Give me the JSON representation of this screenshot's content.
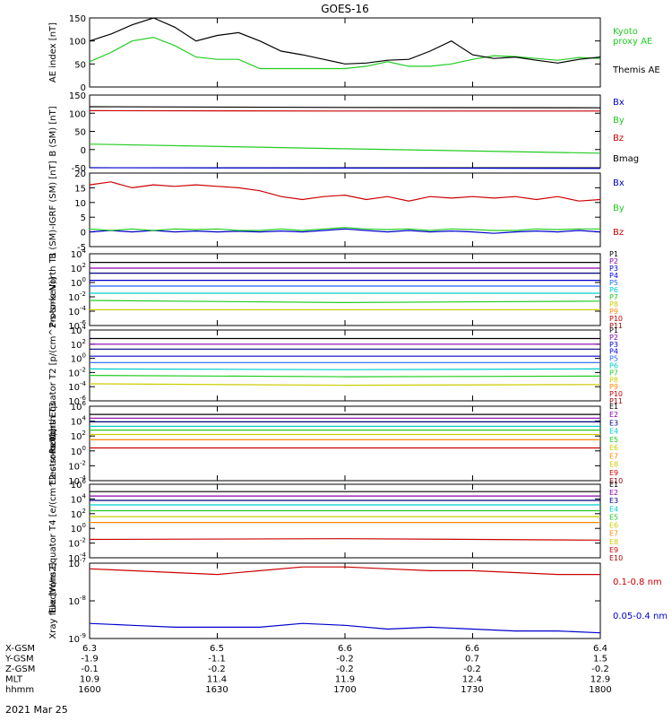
{
  "title": "GOES-16",
  "date": "2021 Mar 25",
  "colors": {
    "black": "#000000",
    "green": "#22cc22",
    "red": "#cc0000",
    "blue": "#0000cc",
    "navy": "#000080",
    "purple": "#8800aa",
    "cyan": "#00cccc",
    "yellow": "#cccc00",
    "orange": "#ff8800",
    "darkred": "#990000",
    "lime": "#66dd00",
    "teal": "#00aa99"
  },
  "chart_data": [
    {
      "type": "line",
      "ylabel": "AE index [nT]",
      "ylim": [
        0,
        150
      ],
      "yticks": [
        "0",
        "50",
        "100",
        "150"
      ],
      "x": [
        0,
        5,
        10,
        15,
        20,
        25,
        30,
        35,
        40,
        45,
        50,
        55,
        60,
        65,
        70,
        75,
        80,
        85,
        90,
        95,
        100,
        105,
        110,
        115,
        120
      ],
      "series": [
        {
          "name": "Kyoto proxy AE",
          "color": "#22cc22",
          "values": [
            55,
            75,
            100,
            108,
            90,
            65,
            60,
            60,
            40,
            40,
            40,
            40,
            40,
            45,
            55,
            45,
            45,
            50,
            60,
            68,
            66,
            62,
            58,
            64,
            62
          ]
        },
        {
          "name": "Themis AE",
          "color": "#000000",
          "values": [
            100,
            115,
            135,
            150,
            130,
            100,
            112,
            118,
            100,
            78,
            70,
            60,
            50,
            52,
            58,
            60,
            78,
            100,
            70,
            62,
            65,
            58,
            52,
            60,
            65
          ]
        }
      ]
    },
    {
      "type": "line",
      "ylabel": "B (SM) [nT]",
      "ylim": [
        -50,
        150
      ],
      "yticks": [
        "-50",
        "0",
        "50",
        "100",
        "150"
      ],
      "x": [
        0,
        60,
        120
      ],
      "series": [
        {
          "name": "Bx",
          "color": "#0000cc",
          "values": [
            -50,
            -51,
            -52
          ]
        },
        {
          "name": "By",
          "color": "#22cc22",
          "values": [
            15,
            2,
            -10
          ]
        },
        {
          "name": "Bz",
          "color": "#cc0000",
          "values": [
            107,
            106,
            106
          ]
        },
        {
          "name": "Bmag",
          "color": "#000000",
          "values": [
            118,
            116,
            115
          ]
        }
      ]
    },
    {
      "type": "line",
      "ylabel": "B (SM)-IGRF (SM) [nT]",
      "ylim": [
        -5,
        20
      ],
      "yticks": [
        "-5",
        "0",
        "5",
        "10",
        "15",
        "20"
      ],
      "x": [
        0,
        5,
        10,
        15,
        20,
        25,
        30,
        35,
        40,
        45,
        50,
        55,
        60,
        65,
        70,
        75,
        80,
        85,
        90,
        95,
        100,
        105,
        110,
        115,
        120
      ],
      "series": [
        {
          "name": "Bx",
          "color": "#0000cc",
          "values": [
            0,
            0.5,
            0,
            0.5,
            0,
            0.3,
            0,
            0.2,
            0,
            0.3,
            0,
            0.5,
            1,
            0.5,
            0,
            0.5,
            0,
            0.3,
            0,
            -0.5,
            0,
            0.3,
            0,
            0.5,
            0
          ]
        },
        {
          "name": "By",
          "color": "#22cc22",
          "values": [
            1,
            0.5,
            1,
            0.5,
            1,
            0.8,
            1,
            0.5,
            0.5,
            1,
            0.5,
            1,
            1.5,
            1,
            0.8,
            1,
            0.5,
            1,
            0.8,
            0.5,
            0.5,
            1,
            0.8,
            1,
            1
          ]
        },
        {
          "name": "Bz",
          "color": "#cc0000",
          "values": [
            16,
            17,
            15,
            16,
            15.5,
            16,
            15.5,
            15,
            14,
            12,
            11,
            12,
            12.5,
            11,
            12,
            10.5,
            12,
            11.5,
            12,
            11.5,
            12,
            11,
            12,
            10.5,
            11
          ]
        }
      ]
    },
    {
      "type": "line",
      "ylabel": "Protons North T1",
      "ylim": [
        -6,
        4
      ],
      "yticks": [
        "10^4",
        "10^2",
        "10^0",
        "10^-2",
        "10^-4",
        "10^-6"
      ],
      "x": [
        0,
        60,
        120
      ],
      "series": [
        {
          "name": "P1",
          "color": "#000000",
          "values": [
            2.8,
            2.8,
            2.8
          ]
        },
        {
          "name": "P2",
          "color": "#8800aa",
          "values": [
            2.0,
            2.0,
            2.0
          ]
        },
        {
          "name": "P3",
          "color": "#000080",
          "values": [
            1.3,
            1.3,
            1.3
          ]
        },
        {
          "name": "P4",
          "color": "#0000cc",
          "values": [
            0.3,
            0.3,
            0.3
          ]
        },
        {
          "name": "P5",
          "color": "#2266ff",
          "values": [
            -0.5,
            -0.5,
            -0.5
          ]
        },
        {
          "name": "P6",
          "color": "#00cccc",
          "values": [
            -1.5,
            -1.5,
            -1.5
          ]
        },
        {
          "name": "P7",
          "color": "#22cc22",
          "values": [
            -2.5,
            -2.8,
            -2.6
          ]
        },
        {
          "name": "P8",
          "color": "#cccc00",
          "values": [
            -3.8,
            -3.8,
            -3.8
          ]
        }
      ],
      "legend": [
        "P1",
        "P2",
        "P3",
        "P4",
        "P5",
        "P6",
        "P7",
        "P8",
        "P9",
        "P10",
        "P11"
      ]
    },
    {
      "type": "line",
      "ylabel": "Protons Equator T2 [p/(cm^2-s-sr-keV)]",
      "ylim": [
        -6,
        4
      ],
      "yticks": [
        "10^4",
        "10^2",
        "10^0",
        "10^-2",
        "10^-4",
        "10^-6"
      ],
      "x": [
        0,
        60,
        120
      ],
      "series": [
        {
          "name": "P1",
          "color": "#000000",
          "values": [
            2.8,
            2.8,
            2.8
          ]
        },
        {
          "name": "P2",
          "color": "#8800aa",
          "values": [
            2.0,
            2.0,
            2.0
          ]
        },
        {
          "name": "P3",
          "color": "#000080",
          "values": [
            1.3,
            1.3,
            1.3
          ]
        },
        {
          "name": "P4",
          "color": "#0000cc",
          "values": [
            0.3,
            0.3,
            0.3
          ]
        },
        {
          "name": "P5",
          "color": "#2266ff",
          "values": [
            -0.6,
            -0.6,
            -0.6
          ]
        },
        {
          "name": "P6",
          "color": "#00cccc",
          "values": [
            -1.5,
            -1.6,
            -1.5
          ]
        },
        {
          "name": "P7",
          "color": "#22cc22",
          "values": [
            -2.4,
            -2.6,
            -2.5
          ]
        },
        {
          "name": "P8",
          "color": "#cccc00",
          "values": [
            -3.6,
            -3.8,
            -3.7
          ]
        }
      ],
      "legend": [
        "P1",
        "P2",
        "P3",
        "P4",
        "P5",
        "P6",
        "P7",
        "P8",
        "P9",
        "P10",
        "P11"
      ]
    },
    {
      "type": "line",
      "ylabel": "Electrons North T3",
      "ylim": [
        -4,
        6
      ],
      "yticks": [
        "10^6",
        "10^4",
        "10^2",
        "10^0",
        "10^-2",
        "10^-4"
      ],
      "x": [
        0,
        60,
        120
      ],
      "series": [
        {
          "name": "E1",
          "color": "#000000",
          "values": [
            4.9,
            4.9,
            4.9
          ]
        },
        {
          "name": "E2",
          "color": "#8800aa",
          "values": [
            4.4,
            4.4,
            4.4
          ]
        },
        {
          "name": "E3",
          "color": "#000080",
          "values": [
            3.9,
            3.9,
            3.9
          ]
        },
        {
          "name": "E4",
          "color": "#00cccc",
          "values": [
            3.3,
            3.3,
            3.3
          ]
        },
        {
          "name": "E5",
          "color": "#22cc22",
          "values": [
            2.8,
            2.8,
            2.8
          ]
        },
        {
          "name": "E6",
          "color": "#cccc00",
          "values": [
            2.2,
            2.2,
            2.2
          ]
        },
        {
          "name": "E7",
          "color": "#ff8800",
          "values": [
            1.5,
            1.5,
            1.5
          ]
        },
        {
          "name": "E8",
          "color": "#cc0000",
          "values": [
            0.4,
            0.4,
            0.4
          ]
        }
      ],
      "legend": [
        "E1",
        "E2",
        "E3",
        "E4",
        "E5",
        "E6",
        "E7",
        "E8",
        "E9",
        "E10"
      ]
    },
    {
      "type": "line",
      "ylabel": "Electrons Equator T4 [e/(cm^2-s-sr-keV)]",
      "ylim": [
        -4,
        6
      ],
      "yticks": [
        "10^6",
        "10^4",
        "10^2",
        "10^0",
        "10^-2",
        "10^-4"
      ],
      "x": [
        0,
        60,
        120
      ],
      "series": [
        {
          "name": "E1",
          "color": "#000000",
          "values": [
            5.0,
            5.0,
            5.0
          ]
        },
        {
          "name": "E2",
          "color": "#8800aa",
          "values": [
            4.4,
            4.4,
            4.4
          ]
        },
        {
          "name": "E3",
          "color": "#000080",
          "values": [
            3.8,
            3.8,
            3.8
          ]
        },
        {
          "name": "E4",
          "color": "#00cccc",
          "values": [
            3.2,
            3.2,
            3.2
          ]
        },
        {
          "name": "E5",
          "color": "#22cc22",
          "values": [
            2.4,
            2.4,
            2.4
          ]
        },
        {
          "name": "E6",
          "color": "#cccc00",
          "values": [
            1.6,
            1.6,
            1.6
          ]
        },
        {
          "name": "E7",
          "color": "#ff8800",
          "values": [
            0.8,
            0.8,
            0.8
          ]
        },
        {
          "name": "E8",
          "color": "#cc0000",
          "values": [
            -1.5,
            -1.4,
            -1.6
          ]
        }
      ],
      "legend": [
        "E1",
        "E2",
        "E3",
        "E4",
        "E5",
        "E6",
        "E7",
        "E8",
        "E9",
        "E10"
      ]
    },
    {
      "type": "line",
      "ylabel": "Xray flux [W/m2]",
      "ylim": [
        -9,
        -7
      ],
      "yticks": [
        "10^-7",
        "10^-8",
        "10^-9"
      ],
      "x": [
        0,
        10,
        20,
        30,
        40,
        50,
        60,
        70,
        80,
        90,
        100,
        110,
        120
      ],
      "series": [
        {
          "name": "0.1-0.8 nm",
          "color": "#cc0000",
          "values": [
            -7.15,
            -7.2,
            -7.25,
            -7.3,
            -7.2,
            -7.1,
            -7.1,
            -7.15,
            -7.2,
            -7.2,
            -7.25,
            -7.3,
            -7.3
          ]
        },
        {
          "name": "0.05-0.4 nm",
          "color": "#0000cc",
          "values": [
            -8.6,
            -8.65,
            -8.7,
            -8.7,
            -8.7,
            -8.6,
            -8.65,
            -8.75,
            -8.7,
            -8.75,
            -8.8,
            -8.8,
            -8.85
          ]
        }
      ]
    }
  ],
  "footer": {
    "rows": [
      {
        "label": "X-GSM",
        "values": [
          "6.3",
          "6.5",
          "6.6",
          "6.6",
          "6.4"
        ]
      },
      {
        "label": "Y-GSM",
        "values": [
          "-1.9",
          "-1.1",
          "-0.2",
          "0.7",
          "1.5"
        ]
      },
      {
        "label": "Z-GSM",
        "values": [
          "-0.1",
          "-0.2",
          "-0.2",
          "-0.2",
          "-0.2"
        ]
      },
      {
        "label": "MLT",
        "values": [
          "10.9",
          "11.4",
          "11.9",
          "12.4",
          "12.9"
        ]
      },
      {
        "label": "hhmm",
        "values": [
          "1600",
          "1630",
          "1700",
          "1730",
          "1800"
        ]
      }
    ]
  }
}
